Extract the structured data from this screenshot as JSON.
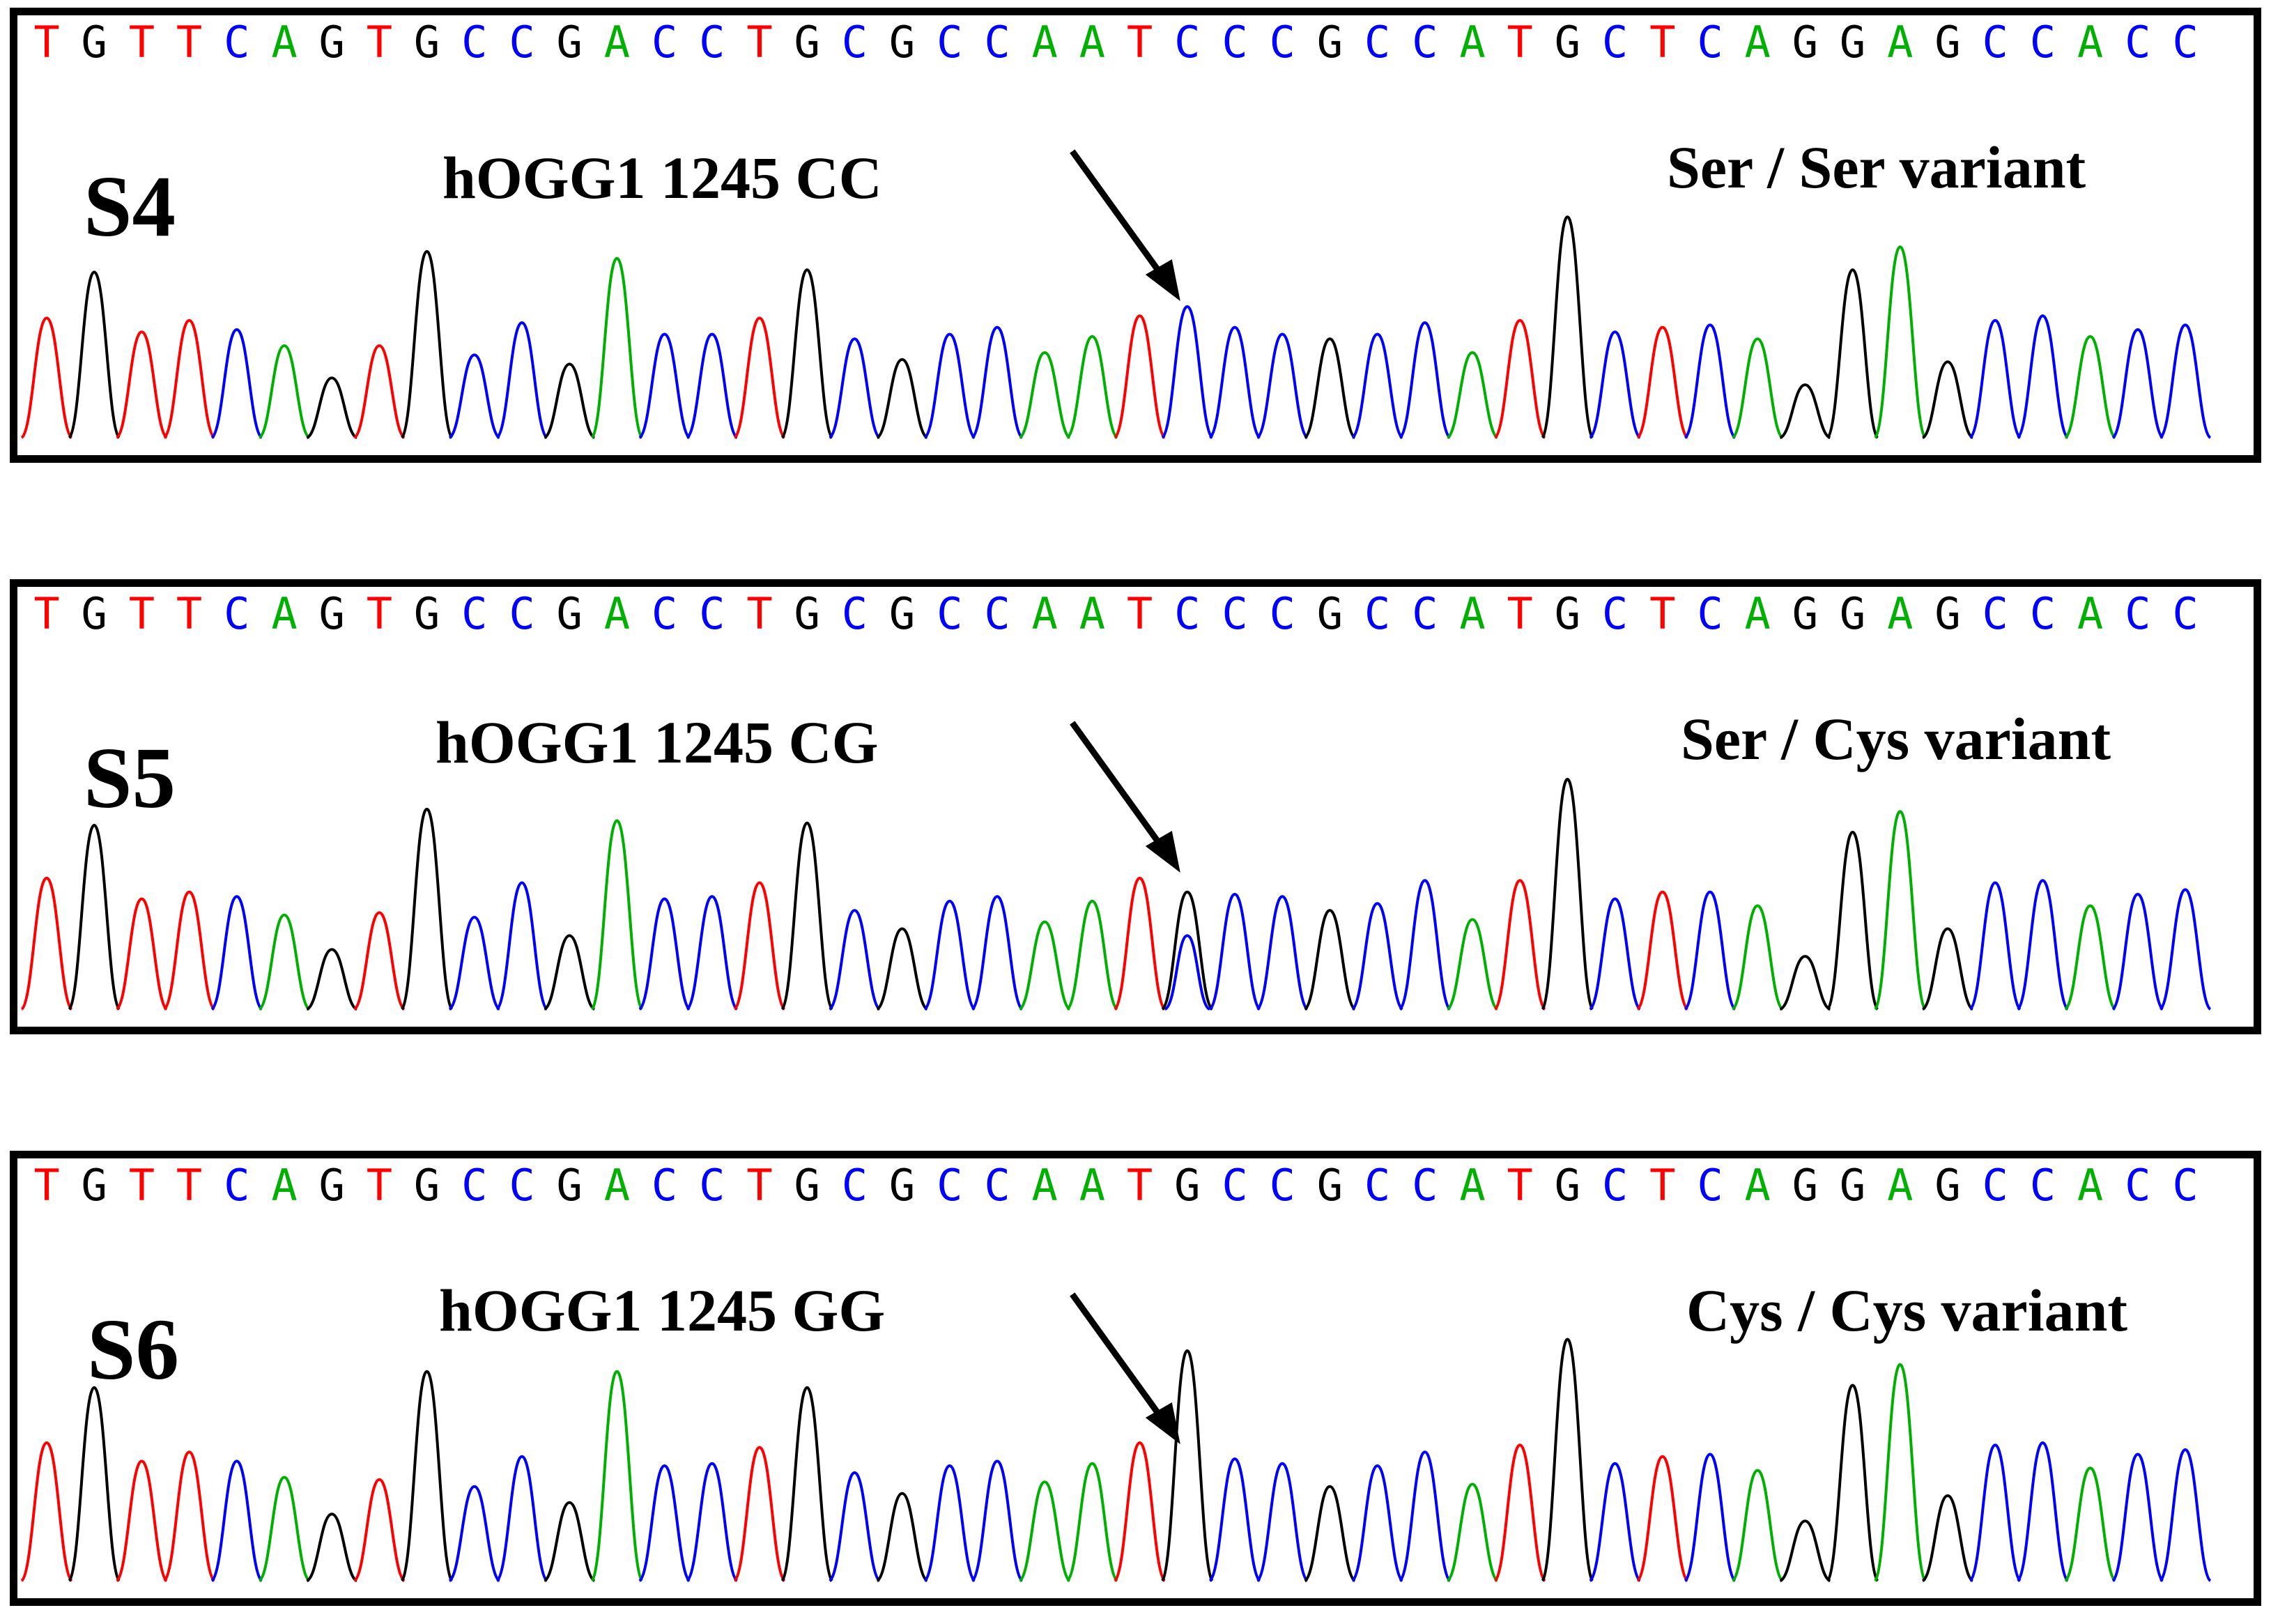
{
  "colors": {
    "A": "#00b000",
    "C": "#0000ff",
    "G": "#000000",
    "T": "#ff0000"
  },
  "panels": [
    {
      "sample": "S4",
      "locus": "hOGG1 1245 CC",
      "variant": "Ser / Ser variant",
      "sequence": "TGTTCAGTGCCGACCTGCGCCAATCCCGCCATGCTCAGGAGCCACC"
    },
    {
      "sample": "S5",
      "locus": "hOGG1 1245 CG",
      "variant": "Ser / Cys variant",
      "sequence": "TGTTCAGTGCCGACCTGCGCCAATCCCGCCATGCTCAGGAGCCACC"
    },
    {
      "sample": "S6",
      "locus": "hOGG1 1245 GG",
      "variant": "Cys / Cys variant",
      "sequence": "TGTTCAGTGCCGACCTGCGCCAATGCCGCCATGCTCAGGAGCCACC"
    }
  ],
  "chart_data": {
    "type": "line",
    "description_series": "Sanger sequencing chromatograms; one trace per base",
    "panels": [
      {
        "sample": "S4",
        "peaks": [
          {
            "base": "T",
            "h": 0.52
          },
          {
            "base": "G",
            "h": 0.72
          },
          {
            "base": "T",
            "h": 0.46
          },
          {
            "base": "T",
            "h": 0.51
          },
          {
            "base": "C",
            "h": 0.47
          },
          {
            "base": "A",
            "h": 0.4
          },
          {
            "base": "G",
            "h": 0.26
          },
          {
            "base": "T",
            "h": 0.4
          },
          {
            "base": "G",
            "h": 0.81
          },
          {
            "base": "C",
            "h": 0.36
          },
          {
            "base": "C",
            "h": 0.5
          },
          {
            "base": "G",
            "h": 0.32
          },
          {
            "base": "A",
            "h": 0.78
          },
          {
            "base": "C",
            "h": 0.45
          },
          {
            "base": "C",
            "h": 0.45
          },
          {
            "base": "T",
            "h": 0.52
          },
          {
            "base": "G",
            "h": 0.73
          },
          {
            "base": "C",
            "h": 0.43
          },
          {
            "base": "G",
            "h": 0.34
          },
          {
            "base": "C",
            "h": 0.45
          },
          {
            "base": "C",
            "h": 0.48
          },
          {
            "base": "A",
            "h": 0.37
          },
          {
            "base": "A",
            "h": 0.44
          },
          {
            "base": "T",
            "h": 0.53
          },
          {
            "base": "C",
            "h": 0.57
          },
          {
            "base": "C",
            "h": 0.48
          },
          {
            "base": "C",
            "h": 0.45
          },
          {
            "base": "G",
            "h": 0.43
          },
          {
            "base": "C",
            "h": 0.45
          },
          {
            "base": "C",
            "h": 0.5
          },
          {
            "base": "A",
            "h": 0.37
          },
          {
            "base": "T",
            "h": 0.51
          },
          {
            "base": "G",
            "h": 0.96
          },
          {
            "base": "C",
            "h": 0.46
          },
          {
            "base": "T",
            "h": 0.48
          },
          {
            "base": "C",
            "h": 0.49
          },
          {
            "base": "A",
            "h": 0.43
          },
          {
            "base": "G",
            "h": 0.23
          },
          {
            "base": "G",
            "h": 0.73
          },
          {
            "base": "A",
            "h": 0.83
          },
          {
            "base": "G",
            "h": 0.33
          },
          {
            "base": "C",
            "h": 0.51
          },
          {
            "base": "C",
            "h": 0.53
          },
          {
            "base": "A",
            "h": 0.44
          },
          {
            "base": "C",
            "h": 0.47
          },
          {
            "base": "C",
            "h": 0.49
          }
        ]
      },
      {
        "sample": "S5",
        "peaks": [
          {
            "base": "T",
            "h": 0.57
          },
          {
            "base": "G",
            "h": 0.8
          },
          {
            "base": "T",
            "h": 0.48
          },
          {
            "base": "T",
            "h": 0.51
          },
          {
            "base": "C",
            "h": 0.49
          },
          {
            "base": "A",
            "h": 0.41
          },
          {
            "base": "G",
            "h": 0.26
          },
          {
            "base": "T",
            "h": 0.42
          },
          {
            "base": "G",
            "h": 0.87
          },
          {
            "base": "C",
            "h": 0.4
          },
          {
            "base": "C",
            "h": 0.55
          },
          {
            "base": "G",
            "h": 0.32
          },
          {
            "base": "A",
            "h": 0.82
          },
          {
            "base": "C",
            "h": 0.48
          },
          {
            "base": "C",
            "h": 0.49
          },
          {
            "base": "T",
            "h": 0.55
          },
          {
            "base": "G",
            "h": 0.81
          },
          {
            "base": "C",
            "h": 0.43
          },
          {
            "base": "G",
            "h": 0.35
          },
          {
            "base": "C",
            "h": 0.47
          },
          {
            "base": "C",
            "h": 0.49
          },
          {
            "base": "A",
            "h": 0.38
          },
          {
            "base": "A",
            "h": 0.47
          },
          {
            "base": "T",
            "h": 0.57
          },
          {
            "base": "G",
            "h": 0.51
          },
          {
            "base": "C",
            "h": 0.5
          },
          {
            "base": "C",
            "h": 0.49
          },
          {
            "base": "G",
            "h": 0.43
          },
          {
            "base": "C",
            "h": 0.46
          },
          {
            "base": "C",
            "h": 0.56
          },
          {
            "base": "A",
            "h": 0.39
          },
          {
            "base": "T",
            "h": 0.56
          },
          {
            "base": "G",
            "h": 1.0
          },
          {
            "base": "C",
            "h": 0.48
          },
          {
            "base": "T",
            "h": 0.51
          },
          {
            "base": "C",
            "h": 0.51
          },
          {
            "base": "A",
            "h": 0.45
          },
          {
            "base": "G",
            "h": 0.23
          },
          {
            "base": "G",
            "h": 0.77
          },
          {
            "base": "A",
            "h": 0.86
          },
          {
            "base": "G",
            "h": 0.35
          },
          {
            "base": "C",
            "h": 0.55
          },
          {
            "base": "C",
            "h": 0.56
          },
          {
            "base": "A",
            "h": 0.45
          },
          {
            "base": "C",
            "h": 0.5
          },
          {
            "base": "C",
            "h": 0.52
          }
        ]
      },
      {
        "sample": "S6",
        "peaks": [
          {
            "base": "T",
            "h": 0.6
          },
          {
            "base": "G",
            "h": 0.84
          },
          {
            "base": "T",
            "h": 0.52
          },
          {
            "base": "T",
            "h": 0.56
          },
          {
            "base": "C",
            "h": 0.52
          },
          {
            "base": "A",
            "h": 0.45
          },
          {
            "base": "G",
            "h": 0.29
          },
          {
            "base": "T",
            "h": 0.44
          },
          {
            "base": "G",
            "h": 0.91
          },
          {
            "base": "C",
            "h": 0.41
          },
          {
            "base": "C",
            "h": 0.54
          },
          {
            "base": "G",
            "h": 0.34
          },
          {
            "base": "A",
            "h": 0.91
          },
          {
            "base": "C",
            "h": 0.5
          },
          {
            "base": "C",
            "h": 0.51
          },
          {
            "base": "T",
            "h": 0.58
          },
          {
            "base": "G",
            "h": 0.84
          },
          {
            "base": "C",
            "h": 0.47
          },
          {
            "base": "G",
            "h": 0.38
          },
          {
            "base": "C",
            "h": 0.5
          },
          {
            "base": "C",
            "h": 0.52
          },
          {
            "base": "A",
            "h": 0.43
          },
          {
            "base": "A",
            "h": 0.51
          },
          {
            "base": "T",
            "h": 0.6
          },
          {
            "base": "G",
            "h": 1.0
          },
          {
            "base": "C",
            "h": 0.53
          },
          {
            "base": "C",
            "h": 0.51
          },
          {
            "base": "G",
            "h": 0.41
          },
          {
            "base": "C",
            "h": 0.5
          },
          {
            "base": "C",
            "h": 0.56
          },
          {
            "base": "A",
            "h": 0.42
          },
          {
            "base": "T",
            "h": 0.59
          },
          {
            "base": "G",
            "h": 1.05
          },
          {
            "base": "C",
            "h": 0.51
          },
          {
            "base": "T",
            "h": 0.54
          },
          {
            "base": "C",
            "h": 0.55
          },
          {
            "base": "A",
            "h": 0.48
          },
          {
            "base": "G",
            "h": 0.26
          },
          {
            "base": "G",
            "h": 0.85
          },
          {
            "base": "A",
            "h": 0.94
          },
          {
            "base": "G",
            "h": 0.37
          },
          {
            "base": "C",
            "h": 0.59
          },
          {
            "base": "C",
            "h": 0.6
          },
          {
            "base": "A",
            "h": 0.49
          },
          {
            "base": "C",
            "h": 0.55
          },
          {
            "base": "C",
            "h": 0.57
          }
        ]
      }
    ]
  }
}
